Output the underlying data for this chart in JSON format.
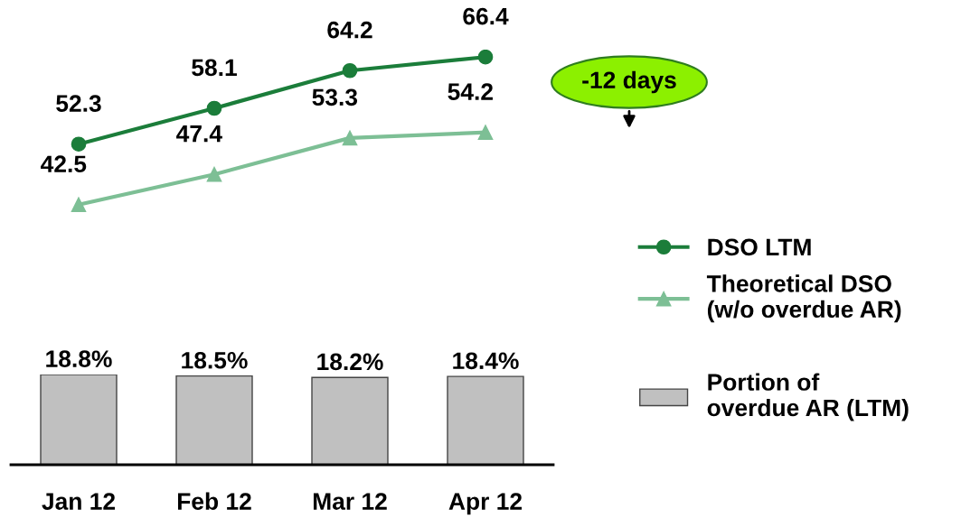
{
  "chart_data": [
    {
      "type": "line",
      "categories": [
        null,
        null,
        null,
        null
      ],
      "tick_labels": false,
      "data_labels": true,
      "legend": "right",
      "grid": false,
      "series": [
        {
          "name": "DSO LTM",
          "color": "#1b7d3a",
          "values": [
            52.3,
            58.1,
            64.2,
            66.4
          ],
          "marker": "circle"
        },
        {
          "name": "Theoretical DSO\n(w/o overdue AR)",
          "color": "#7dbf95",
          "values": [
            42.5,
            47.4,
            53.3,
            54.2
          ],
          "marker": "triangle"
        }
      ],
      "annotations": [
        "-12 days"
      ]
    },
    {
      "type": "bar",
      "categories": [
        "Jan 12",
        "Feb 12",
        "Mar 12",
        "Apr 12"
      ],
      "legend": "right",
      "grid": false,
      "tick_labels": "x",
      "series": [
        {
          "name": "Portion of\noverdue AR (LTM)",
          "color": "#c0c0c0",
          "values": [
            18.8,
            18.5,
            18.2,
            18.4
          ],
          "value_labels": [
            "18.8%",
            "18.5%",
            "18.2%",
            "18.4%"
          ]
        }
      ]
    }
  ]
}
